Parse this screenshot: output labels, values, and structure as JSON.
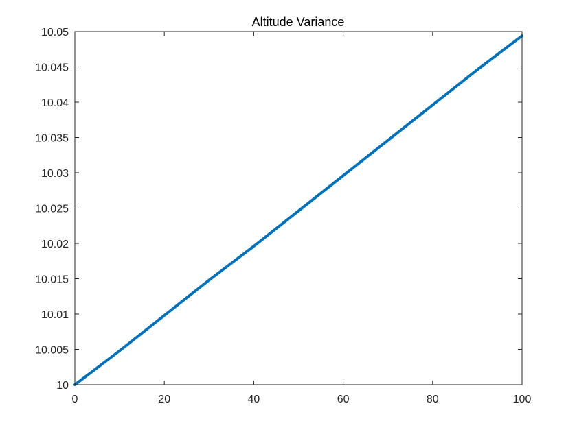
{
  "chart_data": {
    "type": "line",
    "title": "Altitude Variance",
    "xlabel": "",
    "ylabel": "",
    "xlim": [
      0,
      100
    ],
    "ylim": [
      10,
      10.05
    ],
    "x_ticks": [
      0,
      20,
      40,
      60,
      80,
      100
    ],
    "y_ticks": [
      10,
      10.005,
      10.01,
      10.015,
      10.02,
      10.025,
      10.03,
      10.035,
      10.04,
      10.045,
      10.05
    ],
    "x_tick_labels": [
      "0",
      "20",
      "40",
      "60",
      "80",
      "100"
    ],
    "y_tick_labels": [
      "10",
      "10.005",
      "10.01",
      "10.015",
      "10.02",
      "10.025",
      "10.03",
      "10.035",
      "10.04",
      "10.045",
      "10.05"
    ],
    "grid": false,
    "box": true,
    "series": [
      {
        "color": "#0072BD",
        "x": [
          0,
          10,
          20,
          30,
          40,
          50,
          60,
          70,
          80,
          90,
          100
        ],
        "values": [
          10.0,
          10.0048,
          10.0098,
          10.0148,
          10.0196,
          10.0246,
          10.0296,
          10.0346,
          10.0396,
          10.0446,
          10.0494
        ]
      }
    ]
  }
}
